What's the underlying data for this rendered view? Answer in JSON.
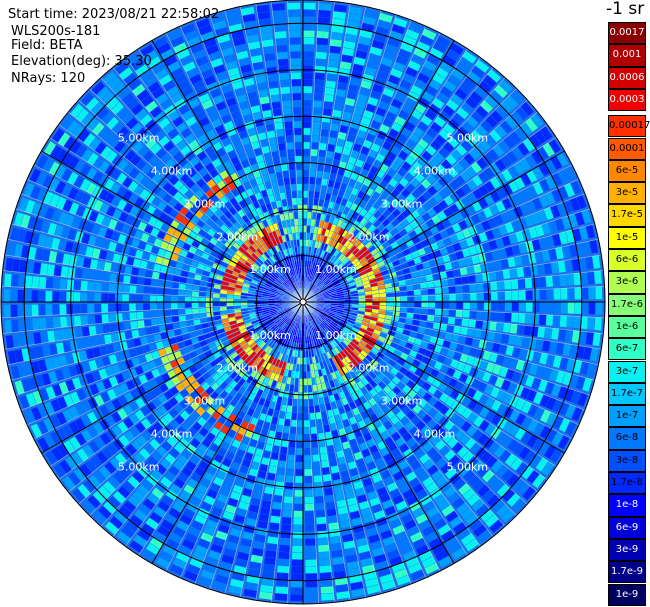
{
  "header": {
    "start_time": "Start time: 2023/08/21 22:58:02",
    "instrument": "WLS200s-181",
    "field": "Field: BETA",
    "elevation": "Elevation(deg): 35.30",
    "nrays": "NRays: 120"
  },
  "colorbar": {
    "units_label": "-1 sr",
    "entries": [
      {
        "label": "0.0017",
        "color": "#8b0000",
        "text_color": "#ffffff"
      },
      {
        "label": "0.001",
        "color": "#b00000",
        "text_color": "#ffffff"
      },
      {
        "label": "0.0006",
        "color": "#d40000",
        "text_color": "#ffffff"
      },
      {
        "label": "0.0003",
        "color": "#f00000",
        "text_color": "#ffffff"
      },
      {
        "label": "0.00017",
        "color": "#ff3000",
        "text_color": "#000000"
      },
      {
        "label": "0.0001",
        "color": "#ff5a00",
        "text_color": "#000000"
      },
      {
        "label": "6e-5",
        "color": "#ff8800",
        "text_color": "#000000"
      },
      {
        "label": "3e-5",
        "color": "#ffb000",
        "text_color": "#000000"
      },
      {
        "label": "1.7e-5",
        "color": "#ffd800",
        "text_color": "#000000"
      },
      {
        "label": "1e-5",
        "color": "#ffff00",
        "text_color": "#000000"
      },
      {
        "label": "6e-6",
        "color": "#d8ff28",
        "text_color": "#000000"
      },
      {
        "label": "3e-6",
        "color": "#b0ff50",
        "text_color": "#000000"
      },
      {
        "label": "1.7e-6",
        "color": "#88ff78",
        "text_color": "#000000"
      },
      {
        "label": "1e-6",
        "color": "#5aff9e",
        "text_color": "#000000"
      },
      {
        "label": "6e-7",
        "color": "#30ffc8",
        "text_color": "#000000"
      },
      {
        "label": "3e-7",
        "color": "#08f0f0",
        "text_color": "#000000"
      },
      {
        "label": "1.7e-7",
        "color": "#00c8ff",
        "text_color": "#000000"
      },
      {
        "label": "1e-7",
        "color": "#00a0ff",
        "text_color": "#000000"
      },
      {
        "label": "6e-8",
        "color": "#0078ff",
        "text_color": "#000000"
      },
      {
        "label": "3e-8",
        "color": "#0050ff",
        "text_color": "#000000"
      },
      {
        "label": "1.7e-8",
        "color": "#0028ff",
        "text_color": "#000000"
      },
      {
        "label": "1e-8",
        "color": "#0000ff",
        "text_color": "#ffffff"
      },
      {
        "label": "6e-9",
        "color": "#0000d8",
        "text_color": "#ffffff"
      },
      {
        "label": "3e-9",
        "color": "#0000b0",
        "text_color": "#ffffff"
      },
      {
        "label": "1.7e-9",
        "color": "#000088",
        "text_color": "#ffffff"
      },
      {
        "label": "1e-9",
        "color": "#000060",
        "text_color": "#ffffff"
      }
    ]
  },
  "chart_data": {
    "type": "heatmap",
    "projection": "polar",
    "field": "BETA",
    "nrays": 120,
    "range_max_km": 6.5,
    "range_rings_km": [
      1,
      2,
      3,
      4,
      5,
      6
    ],
    "ring_labels": [
      "1.00km",
      "2.00km",
      "3.00km",
      "4.00km",
      "5.00km"
    ],
    "spoke_angles_deg": [
      0,
      30,
      60,
      90,
      120,
      150,
      180,
      210,
      240,
      270,
      300,
      330
    ],
    "background_color": "#1f6fe8",
    "near_field_color": "#2b35d8",
    "grid_line_color": "#000000",
    "label_color": "#ffffff",
    "aerosol_ring": {
      "radius_km": 1.55,
      "peak_value": 0.0003,
      "peak_azimuth_sectors_deg": [
        [
          10,
          150
        ],
        [
          195,
          260
        ],
        [
          275,
          340
        ]
      ]
    },
    "outer_patch": {
      "radius_km": 3.0,
      "peak_value": 0.00017,
      "peak_azimuth_sectors_deg": [
        [
          200,
          250
        ],
        [
          285,
          330
        ]
      ]
    },
    "value_range": [
      1e-09,
      0.0017
    ],
    "color_scale": "log"
  }
}
